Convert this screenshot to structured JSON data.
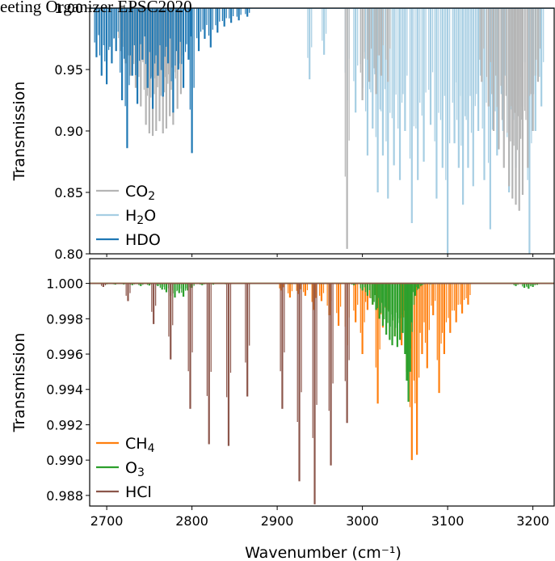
{
  "overlay_title": "eeting Organizer EPSC2020",
  "chart_data": [
    {
      "type": "line",
      "panel": "top",
      "xlabel": "",
      "ylabel": "Transmission",
      "xlim": [
        2680,
        3225
      ],
      "ylim": [
        0.8,
        1.0
      ],
      "yticks": [
        0.8,
        0.85,
        0.9,
        0.95,
        1.0
      ],
      "ytick_labels": [
        "0.80",
        "0.85",
        "0.90",
        "0.95",
        "1.00"
      ],
      "legend_position": "lower-left",
      "legend": [
        {
          "label": "CO",
          "sub": "2",
          "color": "#b5b5b5"
        },
        {
          "label": "H",
          "sub": "2",
          "tail": "O",
          "color": "#a6cee3"
        },
        {
          "label": "HDO",
          "sub": "",
          "color": "#1f78b4"
        }
      ],
      "series": [
        {
          "name": "H2O",
          "color": "#a6cee3",
          "baseline": 1.0,
          "x": [
            2938,
            2955,
            2982,
            2992,
            3000,
            3006,
            3012,
            3018,
            3024,
            3030,
            3037,
            3044,
            3050,
            3058,
            3065,
            3072,
            3080,
            3087,
            3094,
            3100,
            3108,
            3113,
            3118,
            3124,
            3130,
            3136,
            3143,
            3150,
            3158,
            3165,
            3172,
            3180,
            3188,
            3196,
            3203,
            3210
          ],
          "y": [
            0.942,
            0.962,
            0.925,
            0.915,
            0.935,
            0.88,
            0.902,
            0.85,
            0.88,
            0.845,
            0.872,
            0.86,
            0.9,
            0.825,
            0.86,
            0.875,
            0.905,
            0.845,
            0.87,
            0.8,
            0.89,
            0.87,
            0.84,
            0.87,
            0.855,
            0.9,
            0.86,
            0.82,
            0.88,
            0.9,
            0.85,
            0.87,
            0.92,
            0.8,
            0.9,
            0.92
          ]
        },
        {
          "name": "CO2",
          "color": "#b5b5b5",
          "baseline": 1.0,
          "x": [
            2716,
            2722,
            2728,
            2734,
            2740,
            2746,
            2750,
            2754,
            2758,
            2762,
            2766,
            2770,
            2774,
            2778,
            2783,
            2787,
            2982,
            3000,
            3008,
            3016,
            3022,
            3030,
            3140,
            3148,
            3154,
            3160,
            3166,
            3172,
            3176,
            3180,
            3184,
            3188,
            3194,
            3200,
            3206
          ],
          "y": [
            0.965,
            0.955,
            0.945,
            0.935,
            0.92,
            0.905,
            0.898,
            0.896,
            0.9,
            0.908,
            0.898,
            0.902,
            0.912,
            0.905,
            0.918,
            0.93,
            0.804,
            0.925,
            0.94,
            0.93,
            0.945,
            0.94,
            0.94,
            0.92,
            0.9,
            0.885,
            0.87,
            0.855,
            0.845,
            0.84,
            0.835,
            0.848,
            0.87,
            0.9,
            0.94
          ]
        },
        {
          "name": "HDO",
          "color": "#1f78b4",
          "baseline": 1.0,
          "x": [
            2688,
            2694,
            2700,
            2706,
            2711,
            2718,
            2724,
            2730,
            2736,
            2742,
            2748,
            2754,
            2760,
            2766,
            2772,
            2778,
            2784,
            2790,
            2796,
            2800,
            2808,
            2815,
            2822,
            2830,
            2838,
            2846,
            2855,
            2865
          ],
          "y": [
            0.96,
            0.945,
            0.938,
            0.955,
            0.965,
            0.925,
            0.886,
            0.945,
            0.922,
            0.958,
            0.935,
            0.918,
            0.945,
            0.928,
            0.955,
            0.915,
            0.95,
            0.935,
            0.958,
            0.882,
            0.965,
            0.975,
            0.968,
            0.98,
            0.985,
            0.988,
            0.99,
            0.993
          ]
        }
      ]
    },
    {
      "type": "line",
      "panel": "bottom",
      "xlabel": "Wavenumber (cm⁻¹)",
      "ylabel": "Transmission",
      "xlim": [
        2680,
        3225
      ],
      "ylim": [
        0.9874,
        1.0014
      ],
      "xticks": [
        2700,
        2800,
        2900,
        3000,
        3100,
        3200
      ],
      "xtick_labels": [
        "2700",
        "2800",
        "2900",
        "3000",
        "3100",
        "3200"
      ],
      "yticks": [
        0.988,
        0.99,
        0.992,
        0.994,
        0.996,
        0.998,
        1.0
      ],
      "ytick_labels": [
        "0.988",
        "0.990",
        "0.992",
        "0.994",
        "0.996",
        "0.998",
        "1.000"
      ],
      "legend_position": "lower-left",
      "legend": [
        {
          "label": "CH",
          "sub": "4",
          "color": "#ff7f0e"
        },
        {
          "label": "O",
          "sub": "3",
          "color": "#2ca02c"
        },
        {
          "label": "HCl",
          "sub": "",
          "color": "#8c564b"
        }
      ],
      "series": [
        {
          "name": "CH4",
          "color": "#ff7f0e",
          "baseline": 1.0,
          "x": [
            2905,
            2915,
            2925,
            2933,
            2943,
            2952,
            2961,
            2972,
            2982,
            2992,
            3000,
            3006,
            3012,
            3018,
            3024,
            3030,
            3038,
            3046,
            3052,
            3058,
            3064,
            3070,
            3076,
            3083,
            3090,
            3096,
            3103,
            3110,
            3117,
            3124
          ],
          "y": [
            0.9996,
            0.9992,
            0.9994,
            0.9993,
            0.9985,
            0.999,
            0.9982,
            0.9976,
            0.9965,
            0.9978,
            0.996,
            0.9985,
            0.9988,
            0.9932,
            0.9975,
            0.9985,
            0.997,
            0.9965,
            0.995,
            0.99,
            0.9903,
            0.996,
            0.9952,
            0.9982,
            0.9938,
            0.996,
            0.9972,
            0.9978,
            0.9983,
            0.9988
          ]
        },
        {
          "name": "O3",
          "color": "#2ca02c",
          "baseline": 1.0,
          "x": [
            2700,
            2710,
            2720,
            2730,
            2740,
            2750,
            2760,
            2765,
            2770,
            2775,
            2780,
            2785,
            2790,
            2795,
            2800,
            2812,
            2825,
            2840,
            2990,
            3000,
            3006,
            3012,
            3016,
            3020,
            3024,
            3028,
            3032,
            3035,
            3038,
            3041,
            3044,
            3047,
            3050,
            3052,
            3054,
            3056,
            3058,
            3062,
            3066,
            3070,
            3080,
            3180,
            3190,
            3195,
            3200,
            3205
          ],
          "y": [
            0.99995,
            0.99993,
            0.99994,
            0.9999,
            0.99985,
            0.99988,
            0.99985,
            0.99965,
            0.9995,
            0.9993,
            0.9992,
            0.99945,
            0.99925,
            0.9996,
            0.99975,
            0.9999,
            0.99993,
            0.99995,
            0.9999,
            0.9996,
            0.9993,
            0.9988,
            0.9985,
            0.998,
            0.9976,
            0.9971,
            0.9968,
            0.9965,
            0.997,
            0.9964,
            0.9968,
            0.9972,
            0.996,
            0.9945,
            0.9933,
            0.995,
            0.9978,
            0.9993,
            0.9997,
            0.9999,
            0.99995,
            0.99985,
            0.99975,
            0.9997,
            0.9998,
            0.99992
          ]
        },
        {
          "name": "HCl",
          "color": "#8c564b",
          "baseline": 1.0,
          "x": [
            2696,
            2725,
            2755,
            2775,
            2798,
            2820,
            2843,
            2865,
            2906,
            2926,
            2944,
            2963,
            2982
          ],
          "y": [
            0.9998,
            0.999,
            0.9977,
            0.9957,
            0.9929,
            0.9909,
            0.9908,
            0.9936,
            0.9929,
            0.9888,
            0.9875,
            0.9897,
            0.9921
          ]
        }
      ]
    }
  ]
}
